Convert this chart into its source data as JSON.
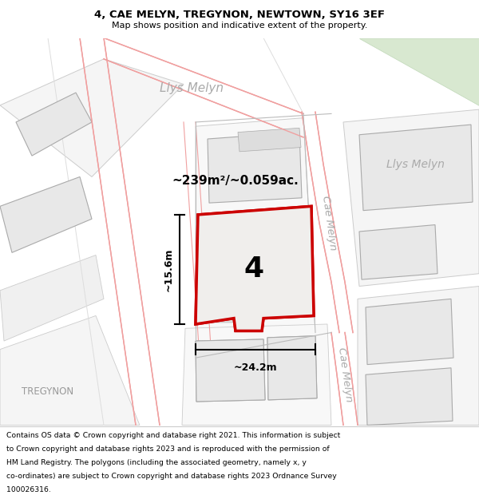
{
  "title": "4, CAE MELYN, TREGYNON, NEWTOWN, SY16 3EF",
  "subtitle": "Map shows position and indicative extent of the property.",
  "footer_lines": [
    "Contains OS data © Crown copyright and database right 2021. This information is subject",
    "to Crown copyright and database rights 2023 and is reproduced with the permission of",
    "HM Land Registry. The polygons (including the associated geometry, namely x, y",
    "co-ordinates) are subject to Crown copyright and database rights 2023 Ordnance Survey",
    "100026316."
  ],
  "map_bg": "#ffffff",
  "block_fill": "#e8e8e8",
  "block_edge": "#aaaaaa",
  "road_fill": "#ffffff",
  "road_edge": "#f0a0a0",
  "subject_fill": "#f0eeec",
  "subject_edge": "#cc0000",
  "label_color": "#aaaaaa",
  "dim_color": "#000000",
  "area_text": "~239m²/~0.059ac.",
  "width_text": "~24.2m",
  "height_text": "~15.6m",
  "number_text": "4",
  "green_fill": "#d8e8d0",
  "green_edge": "#c0d8b8"
}
